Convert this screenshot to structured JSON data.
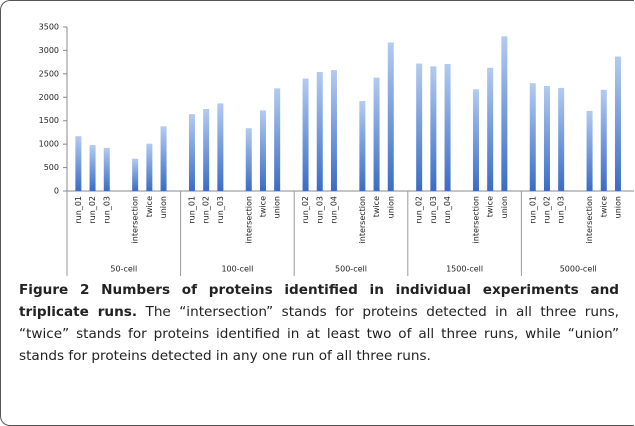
{
  "chart_data": {
    "type": "bar",
    "color": "#3a6cc6",
    "ylim": [
      0,
      3500
    ],
    "yticks": [
      0,
      500,
      1000,
      1500,
      2000,
      2500,
      3000,
      3500
    ],
    "groups": [
      {
        "name": "50-cell",
        "categories": [
          "run_01",
          "run_02",
          "run_03",
          "intersection",
          "twice",
          "union"
        ],
        "values": [
          1170,
          980,
          920,
          690,
          1010,
          1380
        ]
      },
      {
        "name": "100-cell",
        "categories": [
          "run_01",
          "run_02",
          "run_03",
          "intersection",
          "twice",
          "union"
        ],
        "values": [
          1640,
          1750,
          1870,
          1340,
          1720,
          2190
        ]
      },
      {
        "name": "500-cell",
        "categories": [
          "run_02",
          "run_03",
          "run_04",
          "intersection",
          "twice",
          "union"
        ],
        "values": [
          2400,
          2540,
          2580,
          1920,
          2420,
          3170
        ]
      },
      {
        "name": "1500-cell",
        "categories": [
          "run_02",
          "run_03",
          "run_04",
          "intersection",
          "twice",
          "union"
        ],
        "values": [
          2720,
          2660,
          2710,
          2170,
          2630,
          3300
        ]
      },
      {
        "name": "5000-cell",
        "categories": [
          "run_01",
          "run_02",
          "run_03",
          "intersection",
          "twice",
          "union"
        ],
        "values": [
          2300,
          2240,
          2200,
          1710,
          2160,
          2870
        ]
      }
    ]
  },
  "caption": {
    "label": "Figure 2",
    "title": "Numbers of proteins identified in individual experiments and triplicate runs.",
    "text": "The “intersection” stands for proteins detected in all three runs, “twice” stands for proteins identified in at least two of all three runs, while “union” stands for proteins detected in any one run of all three runs."
  }
}
